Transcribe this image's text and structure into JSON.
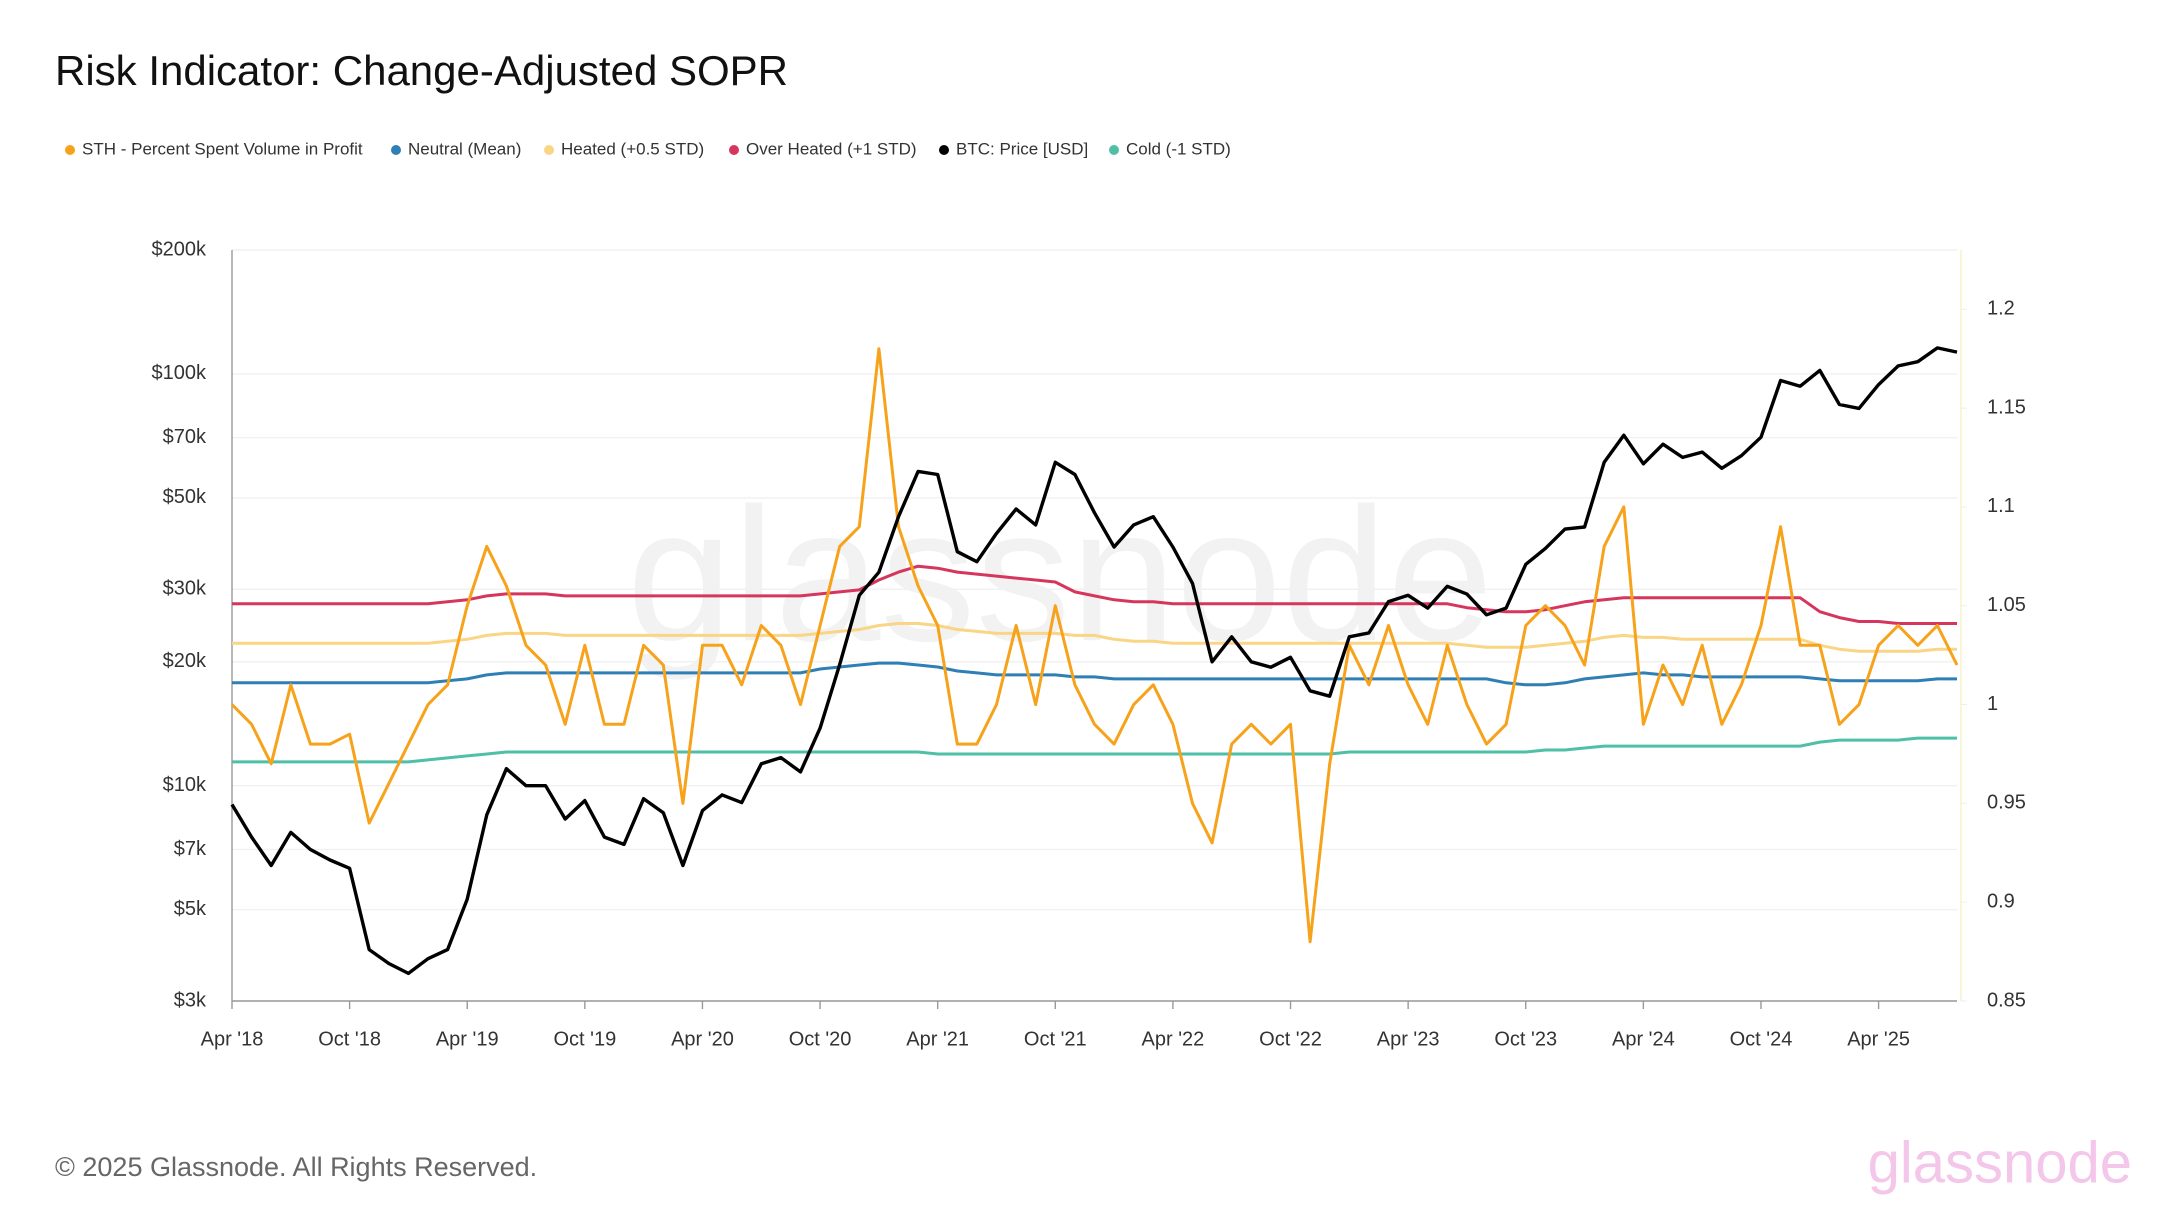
{
  "chart_data": {
    "type": "line",
    "title": "Risk Indicator: Change-Adjusted SOPR",
    "footer": "© 2025 Glassnode. All Rights Reserved.",
    "watermark": "glassnode",
    "legend": "top-left",
    "grid": true,
    "yscale": "log",
    "x": [
      "2018-04",
      "2018-05",
      "2018-06",
      "2018-07",
      "2018-08",
      "2018-09",
      "2018-10",
      "2018-11",
      "2018-12",
      "2019-01",
      "2019-02",
      "2019-03",
      "2019-04",
      "2019-05",
      "2019-06",
      "2019-07",
      "2019-08",
      "2019-09",
      "2019-10",
      "2019-11",
      "2019-12",
      "2020-01",
      "2020-02",
      "2020-03",
      "2020-04",
      "2020-05",
      "2020-06",
      "2020-07",
      "2020-08",
      "2020-09",
      "2020-10",
      "2020-11",
      "2020-12",
      "2021-01",
      "2021-02",
      "2021-03",
      "2021-04",
      "2021-05",
      "2021-06",
      "2021-07",
      "2021-08",
      "2021-09",
      "2021-10",
      "2021-11",
      "2021-12",
      "2022-01",
      "2022-02",
      "2022-03",
      "2022-04",
      "2022-05",
      "2022-06",
      "2022-07",
      "2022-08",
      "2022-09",
      "2022-10",
      "2022-11",
      "2022-12",
      "2023-01",
      "2023-02",
      "2023-03",
      "2023-04",
      "2023-05",
      "2023-06",
      "2023-07",
      "2023-08",
      "2023-09",
      "2023-10",
      "2023-11",
      "2023-12",
      "2024-01",
      "2024-02",
      "2024-03",
      "2024-04",
      "2024-05",
      "2024-06",
      "2024-07",
      "2024-08",
      "2024-09",
      "2024-10",
      "2024-11",
      "2024-12",
      "2025-01",
      "2025-02",
      "2025-03",
      "2025-04",
      "2025-05",
      "2025-06",
      "2025-07",
      "2025-08"
    ],
    "xticks": [
      {
        "value": "2018-04",
        "label": "Apr '18"
      },
      {
        "value": "2018-10",
        "label": "Oct '18"
      },
      {
        "value": "2019-04",
        "label": "Apr '19"
      },
      {
        "value": "2019-10",
        "label": "Oct '19"
      },
      {
        "value": "2020-04",
        "label": "Apr '20"
      },
      {
        "value": "2020-10",
        "label": "Oct '20"
      },
      {
        "value": "2021-04",
        "label": "Apr '21"
      },
      {
        "value": "2021-10",
        "label": "Oct '21"
      },
      {
        "value": "2022-04",
        "label": "Apr '22"
      },
      {
        "value": "2022-10",
        "label": "Oct '22"
      },
      {
        "value": "2023-04",
        "label": "Apr '23"
      },
      {
        "value": "2023-10",
        "label": "Oct '23"
      },
      {
        "value": "2024-04",
        "label": "Apr '24"
      },
      {
        "value": "2024-10",
        "label": "Oct '24"
      },
      {
        "value": "2025-04",
        "label": "Apr '25"
      }
    ],
    "ylim": [
      3000,
      200000
    ],
    "yticks": [
      {
        "value": 3000,
        "label": "$3k"
      },
      {
        "value": 5000,
        "label": "$5k"
      },
      {
        "value": 7000,
        "label": "$7k"
      },
      {
        "value": 10000,
        "label": "$10k"
      },
      {
        "value": 20000,
        "label": "$20k"
      },
      {
        "value": 30000,
        "label": "$30k"
      },
      {
        "value": 50000,
        "label": "$50k"
      },
      {
        "value": 70000,
        "label": "$70k"
      },
      {
        "value": 100000,
        "label": "$100k"
      },
      {
        "value": 200000,
        "label": "$200k"
      }
    ],
    "y2lim": [
      0.85,
      1.23
    ],
    "y2ticks": [
      0.85,
      0.9,
      0.95,
      1,
      1.05,
      1.1,
      1.15,
      1.2
    ],
    "series": [
      {
        "name": "STH - Percent Spent Volume in Profit",
        "color": "#f7a21b",
        "axis": "y2",
        "values": [
          1.0,
          0.99,
          0.97,
          1.01,
          0.98,
          0.98,
          0.985,
          0.94,
          0.96,
          0.98,
          1.0,
          1.01,
          1.05,
          1.08,
          1.06,
          1.03,
          1.02,
          0.99,
          1.03,
          0.99,
          0.99,
          1.03,
          1.02,
          0.95,
          1.03,
          1.03,
          1.01,
          1.04,
          1.03,
          1.0,
          1.04,
          1.08,
          1.09,
          1.18,
          1.09,
          1.06,
          1.04,
          0.98,
          0.98,
          1.0,
          1.04,
          1.0,
          1.05,
          1.01,
          0.99,
          0.98,
          1.0,
          1.01,
          0.99,
          0.95,
          0.93,
          0.98,
          0.99,
          0.98,
          0.99,
          0.88,
          0.97,
          1.03,
          1.01,
          1.04,
          1.01,
          0.99,
          1.03,
          1.0,
          0.98,
          0.99,
          1.04,
          1.05,
          1.04,
          1.02,
          1.08,
          1.1,
          0.99,
          1.02,
          1.0,
          1.03,
          0.99,
          1.01,
          1.04,
          1.09,
          1.03,
          1.03,
          0.99,
          1.0,
          1.03,
          1.04,
          1.03,
          1.04,
          1.02
        ]
      },
      {
        "name": "Neutral (Mean)",
        "color": "#2e7fb5",
        "axis": "y2",
        "values": [
          1.011,
          1.011,
          1.011,
          1.011,
          1.011,
          1.011,
          1.011,
          1.011,
          1.011,
          1.011,
          1.011,
          1.012,
          1.013,
          1.015,
          1.016,
          1.016,
          1.016,
          1.016,
          1.016,
          1.016,
          1.016,
          1.016,
          1.016,
          1.016,
          1.016,
          1.016,
          1.016,
          1.016,
          1.016,
          1.016,
          1.018,
          1.019,
          1.02,
          1.021,
          1.021,
          1.02,
          1.019,
          1.017,
          1.016,
          1.015,
          1.015,
          1.015,
          1.015,
          1.014,
          1.014,
          1.013,
          1.013,
          1.013,
          1.013,
          1.013,
          1.013,
          1.013,
          1.013,
          1.013,
          1.013,
          1.013,
          1.013,
          1.013,
          1.013,
          1.013,
          1.013,
          1.013,
          1.013,
          1.013,
          1.013,
          1.011,
          1.01,
          1.01,
          1.011,
          1.013,
          1.014,
          1.015,
          1.016,
          1.015,
          1.015,
          1.014,
          1.014,
          1.014,
          1.014,
          1.014,
          1.014,
          1.013,
          1.012,
          1.012,
          1.012,
          1.012,
          1.012,
          1.013,
          1.013
        ]
      },
      {
        "name": "Heated (+0.5 STD)",
        "color": "#f9d585",
        "axis": "y2",
        "values": [
          1.031,
          1.031,
          1.031,
          1.031,
          1.031,
          1.031,
          1.031,
          1.031,
          1.031,
          1.031,
          1.031,
          1.032,
          1.033,
          1.035,
          1.036,
          1.036,
          1.036,
          1.035,
          1.035,
          1.035,
          1.035,
          1.035,
          1.035,
          1.035,
          1.035,
          1.035,
          1.035,
          1.035,
          1.035,
          1.035,
          1.036,
          1.037,
          1.038,
          1.04,
          1.041,
          1.041,
          1.04,
          1.038,
          1.037,
          1.036,
          1.036,
          1.036,
          1.036,
          1.035,
          1.035,
          1.033,
          1.032,
          1.032,
          1.031,
          1.031,
          1.031,
          1.031,
          1.031,
          1.031,
          1.031,
          1.031,
          1.031,
          1.031,
          1.031,
          1.031,
          1.031,
          1.031,
          1.031,
          1.03,
          1.029,
          1.029,
          1.029,
          1.03,
          1.031,
          1.032,
          1.034,
          1.035,
          1.034,
          1.034,
          1.033,
          1.033,
          1.033,
          1.033,
          1.033,
          1.033,
          1.033,
          1.03,
          1.028,
          1.027,
          1.027,
          1.027,
          1.027,
          1.028,
          1.028
        ]
      },
      {
        "name": "Over Heated (+1 STD)",
        "color": "#d6365c",
        "axis": "y2",
        "values": [
          1.051,
          1.051,
          1.051,
          1.051,
          1.051,
          1.051,
          1.051,
          1.051,
          1.051,
          1.051,
          1.051,
          1.052,
          1.053,
          1.055,
          1.056,
          1.056,
          1.056,
          1.055,
          1.055,
          1.055,
          1.055,
          1.055,
          1.055,
          1.055,
          1.055,
          1.055,
          1.055,
          1.055,
          1.055,
          1.055,
          1.056,
          1.057,
          1.058,
          1.063,
          1.067,
          1.07,
          1.069,
          1.067,
          1.066,
          1.065,
          1.064,
          1.063,
          1.062,
          1.057,
          1.055,
          1.053,
          1.052,
          1.052,
          1.051,
          1.051,
          1.051,
          1.051,
          1.051,
          1.051,
          1.051,
          1.051,
          1.051,
          1.051,
          1.051,
          1.051,
          1.051,
          1.051,
          1.051,
          1.049,
          1.048,
          1.047,
          1.047,
          1.048,
          1.05,
          1.052,
          1.053,
          1.054,
          1.054,
          1.054,
          1.054,
          1.054,
          1.054,
          1.054,
          1.054,
          1.054,
          1.054,
          1.047,
          1.044,
          1.042,
          1.042,
          1.041,
          1.041,
          1.041,
          1.041
        ]
      },
      {
        "name": "BTC: Price [USD]",
        "color": "#000000",
        "axis": "y",
        "values": [
          9000,
          7500,
          6400,
          7700,
          7000,
          6600,
          6300,
          4000,
          3700,
          3500,
          3800,
          4000,
          5300,
          8500,
          11000,
          10000,
          10000,
          8300,
          9200,
          7500,
          7200,
          9300,
          8600,
          6400,
          8700,
          9500,
          9100,
          11300,
          11700,
          10800,
          13800,
          19700,
          29000,
          33000,
          45000,
          58000,
          57000,
          37000,
          35000,
          41000,
          47000,
          43000,
          61000,
          57000,
          46000,
          38000,
          43000,
          45000,
          38000,
          31000,
          20000,
          23000,
          20000,
          19400,
          20500,
          17000,
          16500,
          23000,
          23500,
          28000,
          29000,
          27000,
          30500,
          29200,
          26000,
          27000,
          34500,
          37700,
          42000,
          42500,
          61000,
          71000,
          60500,
          67500,
          62700,
          64600,
          59000,
          63300,
          70200,
          96400,
          93400,
          102000,
          84300,
          82500,
          94200,
          104600,
          107100,
          115700,
          113000
        ]
      },
      {
        "name": "Cold (-1 STD)",
        "color": "#4fbfa8",
        "axis": "y2",
        "values": [
          0.971,
          0.971,
          0.971,
          0.971,
          0.971,
          0.971,
          0.971,
          0.971,
          0.971,
          0.971,
          0.972,
          0.973,
          0.974,
          0.975,
          0.976,
          0.976,
          0.976,
          0.976,
          0.976,
          0.976,
          0.976,
          0.976,
          0.976,
          0.976,
          0.976,
          0.976,
          0.976,
          0.976,
          0.976,
          0.976,
          0.976,
          0.976,
          0.976,
          0.976,
          0.976,
          0.976,
          0.975,
          0.975,
          0.975,
          0.975,
          0.975,
          0.975,
          0.975,
          0.975,
          0.975,
          0.975,
          0.975,
          0.975,
          0.975,
          0.975,
          0.975,
          0.975,
          0.975,
          0.975,
          0.975,
          0.975,
          0.975,
          0.976,
          0.976,
          0.976,
          0.976,
          0.976,
          0.976,
          0.976,
          0.976,
          0.976,
          0.976,
          0.977,
          0.977,
          0.978,
          0.979,
          0.979,
          0.979,
          0.979,
          0.979,
          0.979,
          0.979,
          0.979,
          0.979,
          0.979,
          0.979,
          0.981,
          0.982,
          0.982,
          0.982,
          0.982,
          0.983,
          0.983,
          0.983
        ]
      }
    ],
    "draw_order": [
      1,
      2,
      3,
      5,
      0,
      4
    ]
  }
}
